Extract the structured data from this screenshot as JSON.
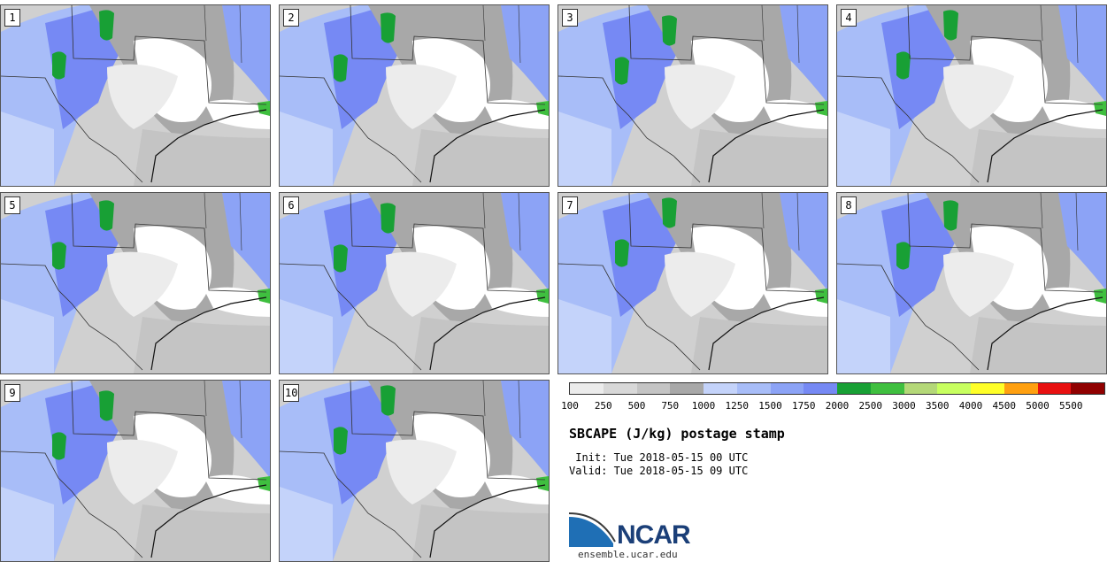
{
  "panels": [
    {
      "label": "1"
    },
    {
      "label": "2"
    },
    {
      "label": "3"
    },
    {
      "label": "4"
    },
    {
      "label": "5"
    },
    {
      "label": "6"
    },
    {
      "label": "7"
    },
    {
      "label": "8"
    },
    {
      "label": "9"
    },
    {
      "label": "10"
    }
  ],
  "colorbar": {
    "levels": [
      "100",
      "250",
      "500",
      "750",
      "1000",
      "1250",
      "1500",
      "1750",
      "2000",
      "2500",
      "3000",
      "3500",
      "4000",
      "4500",
      "5000",
      "5500"
    ],
    "colors": [
      "#ececec",
      "#d8d8d8",
      "#c4c4c4",
      "#a8a8a8",
      "#c4d3fa",
      "#a8bdf8",
      "#8ca3f6",
      "#7689f4",
      "#18a035",
      "#3fbf3f",
      "#b4d878",
      "#c8ff60",
      "#ffff28",
      "#ffa010",
      "#e81010",
      "#900000"
    ]
  },
  "title": "SBCAPE (J/kg) postage stamp",
  "init": " Init: Tue 2018-05-15 00 UTC",
  "valid": "Valid: Tue 2018-05-15 09 UTC",
  "logo": {
    "text": "NCAR",
    "url": "ensemble.ucar.edu"
  }
}
